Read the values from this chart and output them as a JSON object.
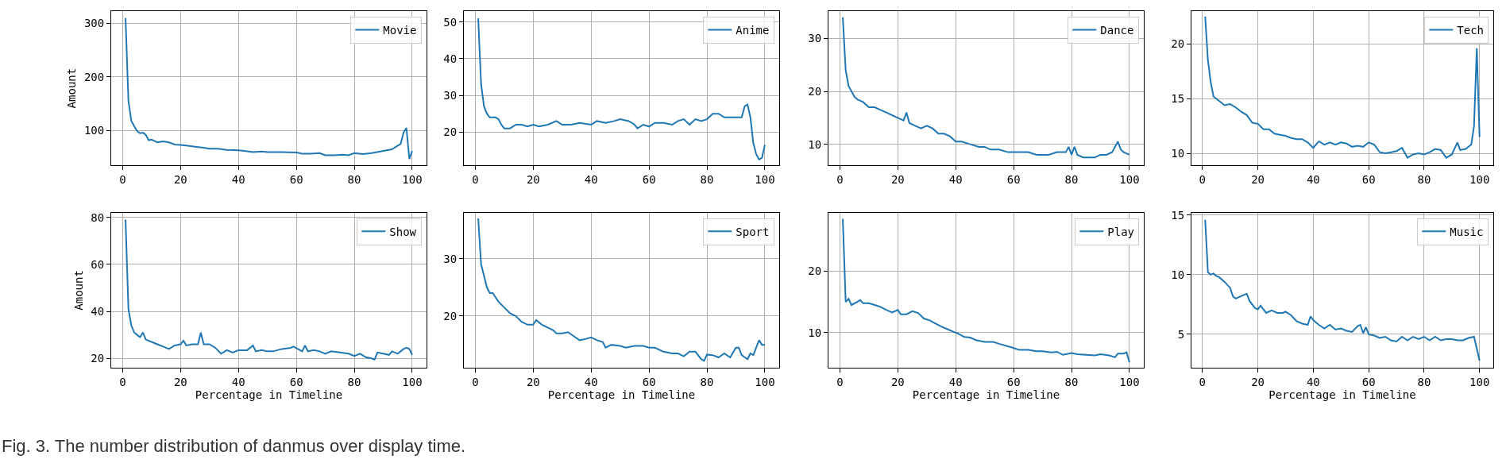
{
  "chart_data": [
    {
      "type": "line",
      "ylabel": "Amount",
      "xlim": [
        -3.95,
        104.95
      ],
      "xticks": [
        0,
        20,
        40,
        60,
        80,
        100
      ],
      "ylim": [
        35,
        323
      ],
      "yticks": [
        100,
        200,
        300
      ],
      "grid": true,
      "legend": "top right",
      "annotations": [
        "Fig. 3. The number distribution of danmus over display time."
      ],
      "series": [
        {
          "name": "Movie",
          "color": "#1f77b4",
          "x": [
            1,
            2,
            3,
            4,
            5,
            6,
            7,
            8,
            9,
            10,
            12,
            14,
            16,
            18,
            20,
            22,
            25,
            28,
            30,
            33,
            36,
            40,
            42,
            45,
            48,
            50,
            55,
            60,
            62,
            65,
            68,
            70,
            73,
            76,
            78,
            80,
            83,
            86,
            90,
            93,
            95,
            96,
            97,
            98,
            99,
            100
          ],
          "values": [
            310,
            155,
            118,
            108,
            99,
            95,
            96,
            92,
            82,
            83,
            78,
            80,
            78,
            74,
            73,
            72,
            70,
            68,
            66,
            66,
            64,
            63,
            62,
            60,
            61,
            60,
            60,
            59,
            57,
            57,
            58,
            54,
            54,
            55,
            54,
            58,
            56,
            58,
            62,
            65,
            72,
            75,
            96,
            105,
            47,
            62
          ]
        }
      ]
    },
    {
      "type": "line",
      "xlim": [
        -3.95,
        104.95
      ],
      "xticks": [
        0,
        20,
        40,
        60,
        80,
        100
      ],
      "ylim": [
        10.9,
        53
      ],
      "yticks": [
        20,
        30,
        40,
        50
      ],
      "grid": true,
      "legend": "top right",
      "series": [
        {
          "name": "Anime",
          "color": "#1f77b4",
          "x": [
            1,
            2,
            3,
            4,
            5,
            6,
            7,
            8,
            9,
            10,
            12,
            14,
            16,
            18,
            20,
            22,
            25,
            28,
            30,
            33,
            36,
            40,
            42,
            45,
            48,
            50,
            53,
            55,
            56,
            58,
            60,
            62,
            65,
            68,
            70,
            72,
            74,
            76,
            78,
            80,
            82,
            84,
            86,
            90,
            92,
            93,
            94,
            95,
            96,
            97,
            98,
            99,
            100
          ],
          "values": [
            51,
            33,
            27,
            25,
            24,
            24,
            24,
            23.5,
            22,
            21,
            21,
            22,
            22,
            21.5,
            22,
            21.5,
            22,
            23,
            22,
            22,
            22.5,
            22,
            23,
            22.5,
            23,
            23.5,
            23,
            22,
            21,
            22,
            21.5,
            22.5,
            22.5,
            22,
            23,
            23.5,
            22,
            23.5,
            23,
            23.5,
            25,
            25,
            24,
            24,
            24,
            27,
            27.5,
            24,
            17,
            14,
            12.5,
            13,
            16.5
          ]
        }
      ]
    },
    {
      "type": "line",
      "xlim": [
        -3.95,
        104.95
      ],
      "xticks": [
        0,
        20,
        40,
        60,
        80,
        100
      ],
      "ylim": [
        6,
        35.2
      ],
      "yticks": [
        10,
        20,
        30
      ],
      "grid": true,
      "legend": "top right",
      "series": [
        {
          "name": "Dance",
          "color": "#1f77b4",
          "x": [
            1,
            2,
            3,
            4,
            5,
            6,
            8,
            10,
            12,
            14,
            16,
            18,
            20,
            22,
            23,
            24,
            26,
            28,
            30,
            32,
            34,
            36,
            38,
            40,
            42,
            45,
            48,
            50,
            52,
            55,
            58,
            60,
            62,
            65,
            68,
            70,
            72,
            75,
            78,
            79,
            80,
            81,
            82,
            84,
            86,
            88,
            90,
            92,
            94,
            96,
            97,
            98,
            100
          ],
          "values": [
            34,
            24,
            21,
            20,
            19,
            18.5,
            18,
            17,
            17,
            16.5,
            16,
            15.5,
            15,
            14.5,
            16,
            14,
            13.5,
            13,
            13.5,
            13,
            12,
            12,
            11.5,
            10.5,
            10.5,
            10,
            9.5,
            9.5,
            9,
            9,
            8.5,
            8.5,
            8.5,
            8.5,
            8,
            8,
            8,
            8.5,
            8.5,
            9.5,
            8,
            9.5,
            8,
            7.5,
            7.5,
            7.5,
            8,
            8,
            8.5,
            10.5,
            9,
            8.5,
            8
          ]
        }
      ]
    },
    {
      "type": "line",
      "xlim": [
        -3.95,
        104.95
      ],
      "xticks": [
        0,
        20,
        40,
        60,
        80,
        100
      ],
      "ylim": [
        8.9,
        23
      ],
      "yticks": [
        10,
        15,
        20
      ],
      "grid": true,
      "legend": "top right",
      "series": [
        {
          "name": "Tech",
          "color": "#1f77b4",
          "x": [
            1,
            2,
            3,
            4,
            6,
            8,
            10,
            12,
            14,
            16,
            18,
            20,
            22,
            24,
            26,
            28,
            30,
            32,
            34,
            36,
            38,
            40,
            42,
            44,
            46,
            48,
            50,
            52,
            54,
            56,
            58,
            60,
            62,
            64,
            66,
            68,
            70,
            72,
            74,
            76,
            78,
            80,
            82,
            84,
            86,
            88,
            90,
            92,
            93,
            95,
            97,
            98,
            99,
            100
          ],
          "values": [
            22.5,
            18.5,
            16.5,
            15.2,
            14.8,
            14.4,
            14.5,
            14.2,
            13.8,
            13.5,
            12.8,
            12.7,
            12.2,
            12.2,
            11.8,
            11.7,
            11.6,
            11.4,
            11.3,
            11.3,
            11.0,
            10.5,
            11.1,
            10.8,
            11,
            10.8,
            11,
            10.9,
            10.6,
            10.7,
            10.6,
            11.0,
            10.8,
            10.1,
            10.0,
            10.1,
            10.2,
            10.5,
            9.6,
            9.9,
            10,
            9.9,
            10.1,
            10.4,
            10.3,
            9.6,
            9.9,
            11,
            10.3,
            10.4,
            10.8,
            12.5,
            19.6,
            11.5
          ]
        }
      ]
    },
    {
      "type": "line",
      "ylabel": "Amount",
      "xlabel": "Percentage in Timeline",
      "xlim": [
        -3.95,
        104.95
      ],
      "xticks": [
        0,
        20,
        40,
        60,
        80,
        100
      ],
      "ylim": [
        16,
        82
      ],
      "yticks": [
        20,
        40,
        60,
        80
      ],
      "grid": true,
      "legend": "top right",
      "series": [
        {
          "name": "Show",
          "color": "#1f77b4",
          "x": [
            1,
            2,
            3,
            4,
            5,
            6,
            7,
            8,
            10,
            12,
            14,
            16,
            18,
            20,
            21,
            22,
            24,
            26,
            27,
            28,
            30,
            32,
            34,
            36,
            38,
            40,
            43,
            45,
            46,
            48,
            50,
            52,
            55,
            58,
            59,
            62,
            63,
            64,
            66,
            68,
            70,
            72,
            75,
            78,
            80,
            82,
            84,
            86,
            87,
            88,
            90,
            92,
            93,
            95,
            97,
            98,
            99,
            100
          ],
          "values": [
            79,
            41,
            34,
            31,
            30,
            29,
            31,
            28,
            27,
            26,
            25,
            24,
            25.5,
            26,
            27.5,
            25.5,
            26,
            26,
            31,
            26,
            26,
            24.5,
            22,
            23.5,
            22.5,
            23.5,
            23.5,
            25.5,
            23,
            23.5,
            23,
            23,
            24,
            24.5,
            25,
            23,
            25.5,
            23,
            23.5,
            23,
            22,
            23,
            22.5,
            22,
            21,
            22,
            20.5,
            20,
            19.5,
            22.5,
            22,
            21.5,
            23,
            22,
            24,
            24.5,
            24,
            21.5
          ]
        }
      ]
    },
    {
      "type": "line",
      "xlabel": "Percentage in Timeline",
      "xlim": [
        -3.95,
        104.95
      ],
      "xticks": [
        0,
        20,
        40,
        60,
        80,
        100
      ],
      "ylim": [
        11,
        38
      ],
      "yticks": [
        20,
        30
      ],
      "grid": true,
      "legend": "top right",
      "series": [
        {
          "name": "Sport",
          "color": "#1f77b4",
          "x": [
            1,
            2,
            3,
            4,
            5,
            6,
            8,
            10,
            12,
            14,
            16,
            18,
            20,
            21,
            23,
            25,
            27,
            28,
            30,
            32,
            34,
            36,
            38,
            40,
            42,
            44,
            45,
            47,
            50,
            52,
            55,
            58,
            60,
            62,
            65,
            68,
            70,
            72,
            74,
            76,
            78,
            79,
            80,
            82,
            84,
            86,
            88,
            90,
            91,
            92,
            94,
            95,
            96,
            98,
            99,
            100
          ],
          "values": [
            37,
            29,
            27,
            25,
            24,
            24,
            22.5,
            21.5,
            20.5,
            20,
            19,
            18.5,
            18.5,
            19.3,
            18.5,
            18,
            17.5,
            17,
            17,
            17.2,
            16.5,
            15.8,
            16,
            16.3,
            15.8,
            15.5,
            14.5,
            15,
            14.8,
            14.5,
            14.8,
            14.8,
            14.5,
            14.5,
            13.8,
            13.5,
            13.5,
            13,
            13.8,
            13.8,
            12.5,
            12.2,
            13.3,
            13.2,
            12.8,
            13.5,
            12.8,
            14.5,
            14.5,
            13.2,
            12.5,
            13.5,
            13.2,
            15.8,
            15,
            15
          ]
        }
      ]
    },
    {
      "type": "line",
      "xlabel": "Percentage in Timeline",
      "xlim": [
        -3.95,
        104.95
      ],
      "xticks": [
        0,
        20,
        40,
        60,
        80,
        100
      ],
      "ylim": [
        4.3,
        29.5
      ],
      "yticks": [
        10,
        20
      ],
      "grid": true,
      "legend": "top right",
      "series": [
        {
          "name": "Play",
          "color": "#1f77b4",
          "x": [
            1,
            2,
            3,
            4,
            6,
            7,
            8,
            10,
            12,
            14,
            16,
            18,
            20,
            21,
            23,
            25,
            27,
            29,
            31,
            33,
            35,
            37,
            39,
            41,
            43,
            45,
            47,
            50,
            53,
            55,
            58,
            60,
            62,
            65,
            68,
            70,
            73,
            75,
            77,
            80,
            82,
            85,
            88,
            90,
            93,
            95,
            96,
            98,
            99,
            100
          ],
          "values": [
            28.5,
            15,
            15.5,
            14.5,
            15,
            15.3,
            14.8,
            14.8,
            14.5,
            14.2,
            13.7,
            13.3,
            13.7,
            13,
            13,
            13.5,
            13.2,
            12.3,
            12,
            11.5,
            11,
            10.6,
            10.2,
            9.8,
            9.3,
            9.2,
            8.8,
            8.5,
            8.5,
            8.2,
            7.8,
            7.5,
            7.2,
            7.2,
            7,
            7,
            6.8,
            6.9,
            6.4,
            6.7,
            6.5,
            6.4,
            6.3,
            6.5,
            6.3,
            6,
            6.6,
            6.6,
            6.8,
            5.2
          ]
        }
      ]
    },
    {
      "type": "line",
      "xlabel": "Percentage in Timeline",
      "xlim": [
        -3.95,
        104.95
      ],
      "xticks": [
        0,
        20,
        40,
        60,
        80,
        100
      ],
      "ylim": [
        2.2,
        15.2
      ],
      "yticks": [
        5,
        10,
        15
      ],
      "grid": true,
      "legend": "top right",
      "series": [
        {
          "name": "Music",
          "color": "#1f77b4",
          "x": [
            1,
            2,
            3,
            4,
            5,
            6,
            8,
            10,
            11,
            12,
            14,
            16,
            17,
            19,
            20,
            21,
            23,
            25,
            27,
            29,
            30,
            32,
            34,
            36,
            38,
            39,
            40,
            42,
            44,
            46,
            48,
            50,
            52,
            54,
            56,
            57,
            58,
            59,
            60,
            62,
            64,
            66,
            68,
            70,
            72,
            74,
            76,
            78,
            80,
            82,
            84,
            86,
            88,
            90,
            92,
            94,
            96,
            98,
            100
          ],
          "values": [
            14.6,
            10.2,
            10,
            10.1,
            9.9,
            9.8,
            9.4,
            8.9,
            8.2,
            8.0,
            8.2,
            8.4,
            7.8,
            7.2,
            7.1,
            7.4,
            6.8,
            7.0,
            6.8,
            6.8,
            6.9,
            6.6,
            6.1,
            5.9,
            5.8,
            6.5,
            6.2,
            5.8,
            5.5,
            5.8,
            5.4,
            5.5,
            5.3,
            5.2,
            5.7,
            5.8,
            5.1,
            5.6,
            5.0,
            4.9,
            4.7,
            4.8,
            4.5,
            4.4,
            4.8,
            4.5,
            4.8,
            4.6,
            4.8,
            4.5,
            4.8,
            4.5,
            4.6,
            4.6,
            4.5,
            4.5,
            4.7,
            4.8,
            2.8
          ]
        }
      ]
    }
  ]
}
